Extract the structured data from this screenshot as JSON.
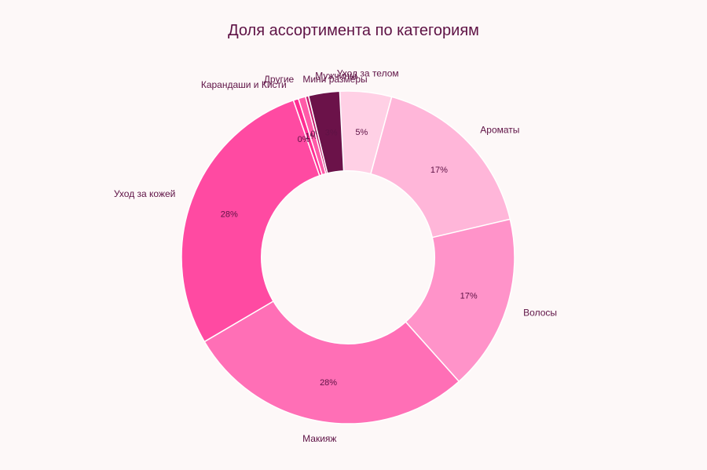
{
  "chart_data": {
    "type": "pie",
    "title": "Доля ассортимента по категориям",
    "hole": 0.52,
    "slices": [
      {
        "label": "Уход за телом",
        "value": 5,
        "pct_label": "5%",
        "color": "#ffd0e5"
      },
      {
        "label": "Ароматы",
        "value": 17,
        "pct_label": "17%",
        "color": "#ffb6d9"
      },
      {
        "label": "Волосы",
        "value": 17,
        "pct_label": "17%",
        "color": "#ff93c9"
      },
      {
        "label": "Макияж",
        "value": 28,
        "pct_label": "28%",
        "color": "#ff6fb6"
      },
      {
        "label": "Уход за кожей",
        "value": 28,
        "pct_label": "28%",
        "color": "#ff4aa2"
      },
      {
        "label": "Карандаши и Кисти",
        "value": 0.5,
        "pct_label": "0%",
        "color": "#ff2d93"
      },
      {
        "label": "Другие",
        "value": 0.7,
        "pct_label": "1%",
        "color": "#ff5aa8"
      },
      {
        "label": "Мини размеры",
        "value": 0.3,
        "pct_label": "0%",
        "color": "#c2186b"
      },
      {
        "label": "Мужчины",
        "value": 3,
        "pct_label": "3%",
        "color": "#6b1249"
      }
    ]
  }
}
